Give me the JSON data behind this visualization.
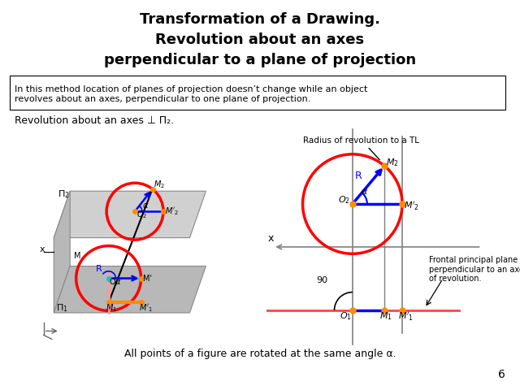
{
  "title": "Transformation of a Drawing.\nRevolution about an axes\nperpendicular to a plane of projection",
  "title_fontsize": 13,
  "desc_text": "In this method location of planes of projection doesn’t change while an object\nrevolves about an axes, perpendicular to one plane of projection.",
  "revolution_label": "Revolution about an axes ⊥ Π₂.",
  "bottom_label": "All points of a figure are rotated at the same angle α.",
  "page_num": "6",
  "bg_color": "#ffffff",
  "radius_ann_text": "Radius of revolution to a TL",
  "frontal_ann_text": "Frontal principal plane\nperpendicular to an axes\nof revolution."
}
